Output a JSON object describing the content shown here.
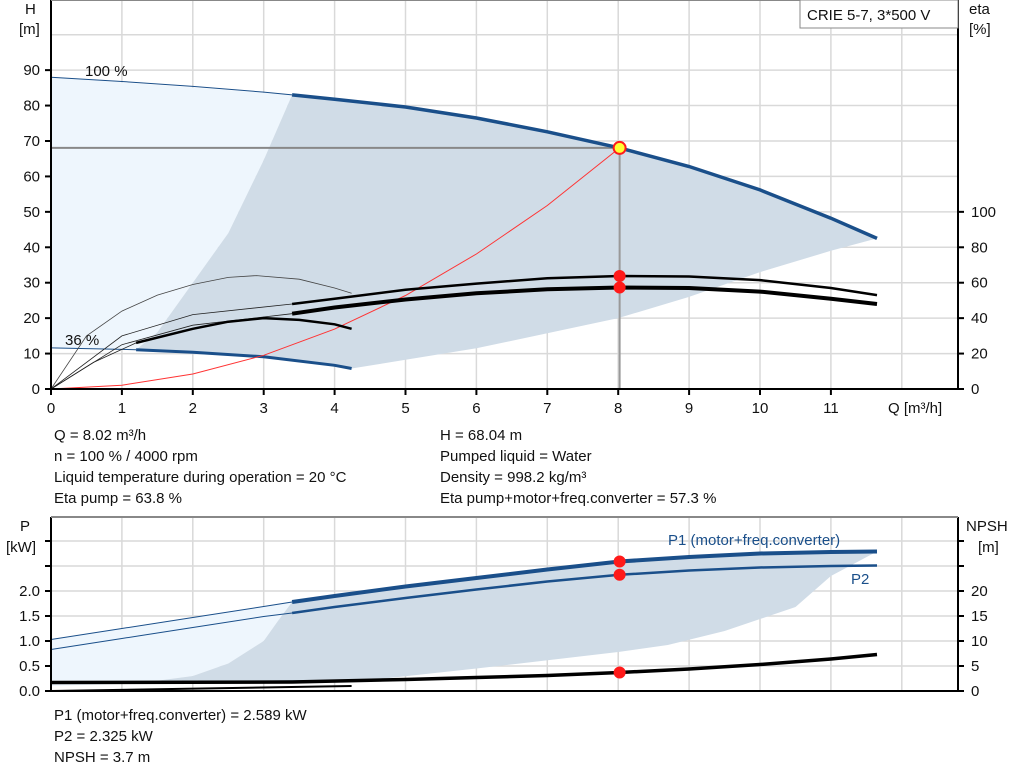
{
  "chart_data": [
    {
      "type": "line",
      "title": "CRIE 5-7, 3*500 V",
      "xlabel": "Q [m³/h]",
      "ylabel": [
        "H",
        "[m]"
      ],
      "y2label": [
        "eta",
        "[%]"
      ],
      "xlim": [
        0,
        12.8
      ],
      "ylim": [
        0,
        110
      ],
      "y2lim": [
        0,
        220
      ],
      "x_ticks": [
        "0",
        "1",
        "2",
        "3",
        "4",
        "5",
        "6",
        "7",
        "8",
        "9",
        "10",
        "11"
      ],
      "y_ticks": [
        "0",
        "10",
        "20",
        "30",
        "40",
        "50",
        "60",
        "70",
        "80",
        "90"
      ],
      "y2_ticks": [
        "0",
        "20",
        "40",
        "60",
        "80",
        "100"
      ],
      "grid": true,
      "annotations": {
        "speed_max": "100 %",
        "speed_min": "36 %"
      },
      "series": [
        {
          "axis": "H",
          "color": "#1a4f8a",
          "points": [
            [
              0,
              88
            ],
            [
              1,
              86.8
            ],
            [
              2,
              85.4
            ],
            [
              3,
              83.8
            ],
            [
              3.4,
              83
            ],
            [
              4,
              81.8
            ],
            [
              5,
              79.6
            ],
            [
              6,
              76.5
            ],
            [
              7,
              72.6
            ],
            [
              8.02,
              68.04
            ],
            [
              9,
              62.8
            ],
            [
              10,
              56.2
            ],
            [
              11,
              48.2
            ],
            [
              11.65,
              42.5
            ]
          ]
        },
        {
          "axis": "H",
          "color": "#1a4f8a",
          "points": [
            [
              0,
              11.6
            ],
            [
              1.2,
              11.1
            ],
            [
              2,
              10.4
            ],
            [
              3,
              9.1
            ],
            [
              4,
              6.7
            ],
            [
              4.24,
              5.8
            ]
          ]
        },
        {
          "axis": "H",
          "color": "#ff3333",
          "points": [
            [
              0,
              0
            ],
            [
              1,
              1.06
            ],
            [
              2,
              4.23
            ],
            [
              3,
              9.52
            ],
            [
              4,
              16.9
            ],
            [
              5,
              26.4
            ],
            [
              6,
              38.1
            ],
            [
              7,
              51.8
            ],
            [
              8.02,
              68.04
            ]
          ]
        },
        {
          "axis": "eta",
          "color": "#000000",
          "points": [
            [
              0,
              0
            ],
            [
              1,
              30
            ],
            [
              2,
              42
            ],
            [
              3.4,
              48
            ],
            [
              4,
              51
            ],
            [
              5,
              56
            ],
            [
              6,
              59.5
            ],
            [
              7,
              62.5
            ],
            [
              8.02,
              63.8
            ],
            [
              9,
              63.5
            ],
            [
              10,
              61.5
            ],
            [
              11,
              57
            ],
            [
              11.65,
              53
            ]
          ]
        },
        {
          "axis": "eta",
          "color": "#000000",
          "points": [
            [
              0,
              0
            ],
            [
              1,
              25
            ],
            [
              2,
              36
            ],
            [
              3.4,
              42.5
            ],
            [
              4,
              46
            ],
            [
              5,
              50.5
            ],
            [
              6,
              54
            ],
            [
              7,
              56.3
            ],
            [
              8.02,
              57.3
            ],
            [
              9,
              57
            ],
            [
              10,
              55
            ],
            [
              11,
              51
            ],
            [
              11.65,
              48
            ]
          ]
        },
        {
          "axis": "eta",
          "color": "#000000",
          "points": [
            [
              0,
              0
            ],
            [
              0.5,
              30
            ],
            [
              1,
              44
            ],
            [
              1.5,
              53
            ],
            [
              2,
              59
            ],
            [
              2.5,
              63
            ],
            [
              2.9,
              64
            ],
            [
              3.5,
              62
            ],
            [
              4,
              57
            ],
            [
              4.24,
              54
            ]
          ]
        },
        {
          "axis": "eta",
          "color": "#000000",
          "points": [
            [
              0,
              0
            ],
            [
              0.6,
              15
            ],
            [
              1.2,
              26
            ],
            [
              2,
              34
            ],
            [
              2.5,
              38
            ],
            [
              3,
              40
            ],
            [
              3.5,
              39
            ],
            [
              4,
              36.5
            ],
            [
              4.24,
              34
            ]
          ]
        }
      ],
      "duty_point": {
        "Q": 8.02,
        "H": 68.04,
        "eta_pump": 63.8,
        "eta_total": 57.3
      }
    },
    {
      "type": "line",
      "ylabel": [
        "P",
        "[kW]"
      ],
      "y2label": [
        "NPSH",
        "[m]"
      ],
      "ylim": [
        0,
        3.5
      ],
      "y2lim": [
        0,
        35
      ],
      "y_ticks": [
        "0.0",
        "0.5",
        "1.0",
        "1.5",
        "2.0"
      ],
      "y2_ticks": [
        "0",
        "5",
        "10",
        "15",
        "20"
      ],
      "grid": true,
      "series": [
        {
          "name": "P1 (motor+freq.converter)",
          "axis": "P",
          "color": "#1a4f8a",
          "points": [
            [
              0,
              1.03
            ],
            [
              1,
              1.25
            ],
            [
              2,
              1.47
            ],
            [
              3,
              1.69
            ],
            [
              3.4,
              1.78
            ],
            [
              4,
              1.9
            ],
            [
              5,
              2.09
            ],
            [
              6,
              2.26
            ],
            [
              7,
              2.43
            ],
            [
              8.02,
              2.589
            ],
            [
              9,
              2.68
            ],
            [
              10,
              2.75
            ],
            [
              11,
              2.78
            ],
            [
              11.65,
              2.79
            ]
          ]
        },
        {
          "name": "P2",
          "axis": "P",
          "color": "#1a4f8a",
          "points": [
            [
              0,
              0.83
            ],
            [
              1,
              1.05
            ],
            [
              2,
              1.27
            ],
            [
              3,
              1.49
            ],
            [
              3.4,
              1.56
            ],
            [
              4,
              1.68
            ],
            [
              5,
              1.86
            ],
            [
              6,
              2.03
            ],
            [
              7,
              2.19
            ],
            [
              8.02,
              2.325
            ],
            [
              9,
              2.41
            ],
            [
              10,
              2.47
            ],
            [
              11,
              2.5
            ],
            [
              11.65,
              2.51
            ]
          ]
        },
        {
          "axis": "NPSH",
          "color": "#000000",
          "points": [
            [
              0,
              1.7
            ],
            [
              3.4,
              1.8
            ],
            [
              5,
              2.3
            ],
            [
              6,
              2.7
            ],
            [
              7,
              3.1
            ],
            [
              8.02,
              3.7
            ],
            [
              9,
              4.4
            ],
            [
              10,
              5.3
            ],
            [
              11,
              6.4
            ],
            [
              11.65,
              7.3
            ]
          ]
        },
        {
          "axis": "P",
          "color": "#1a4f8a",
          "points": [
            [
              0,
              0.16
            ],
            [
              4.24,
              0.2
            ]
          ]
        },
        {
          "axis": "P",
          "color": "#000000",
          "points": [
            [
              0,
              0.0
            ],
            [
              4.24,
              0.1
            ]
          ]
        }
      ],
      "duty_point": {
        "P1": 2.589,
        "P2": 2.325,
        "NPSH": 3.7
      }
    }
  ],
  "info_top": {
    "left": [
      "Q = 8.02 m³/h",
      "n = 100 % / 4000 rpm",
      "Liquid temperature during operation = 20 °C",
      "Eta pump = 63.8 %"
    ],
    "right": [
      "H = 68.04 m",
      "Pumped liquid = Water",
      "Density = 998.2 kg/m³",
      "Eta pump+motor+freq.converter = 57.3 %"
    ]
  },
  "info_bottom": [
    "P1 (motor+freq.converter) = 2.589 kW",
    "P2 = 2.325 kW",
    "NPSH = 3.7 m"
  ],
  "colors": {
    "curve": "#1a4f8a",
    "area_dark": "#d0dce7",
    "area_light": "#eef6fd",
    "marker": "#ff1a1a",
    "duty_marker": "#ffff33"
  }
}
